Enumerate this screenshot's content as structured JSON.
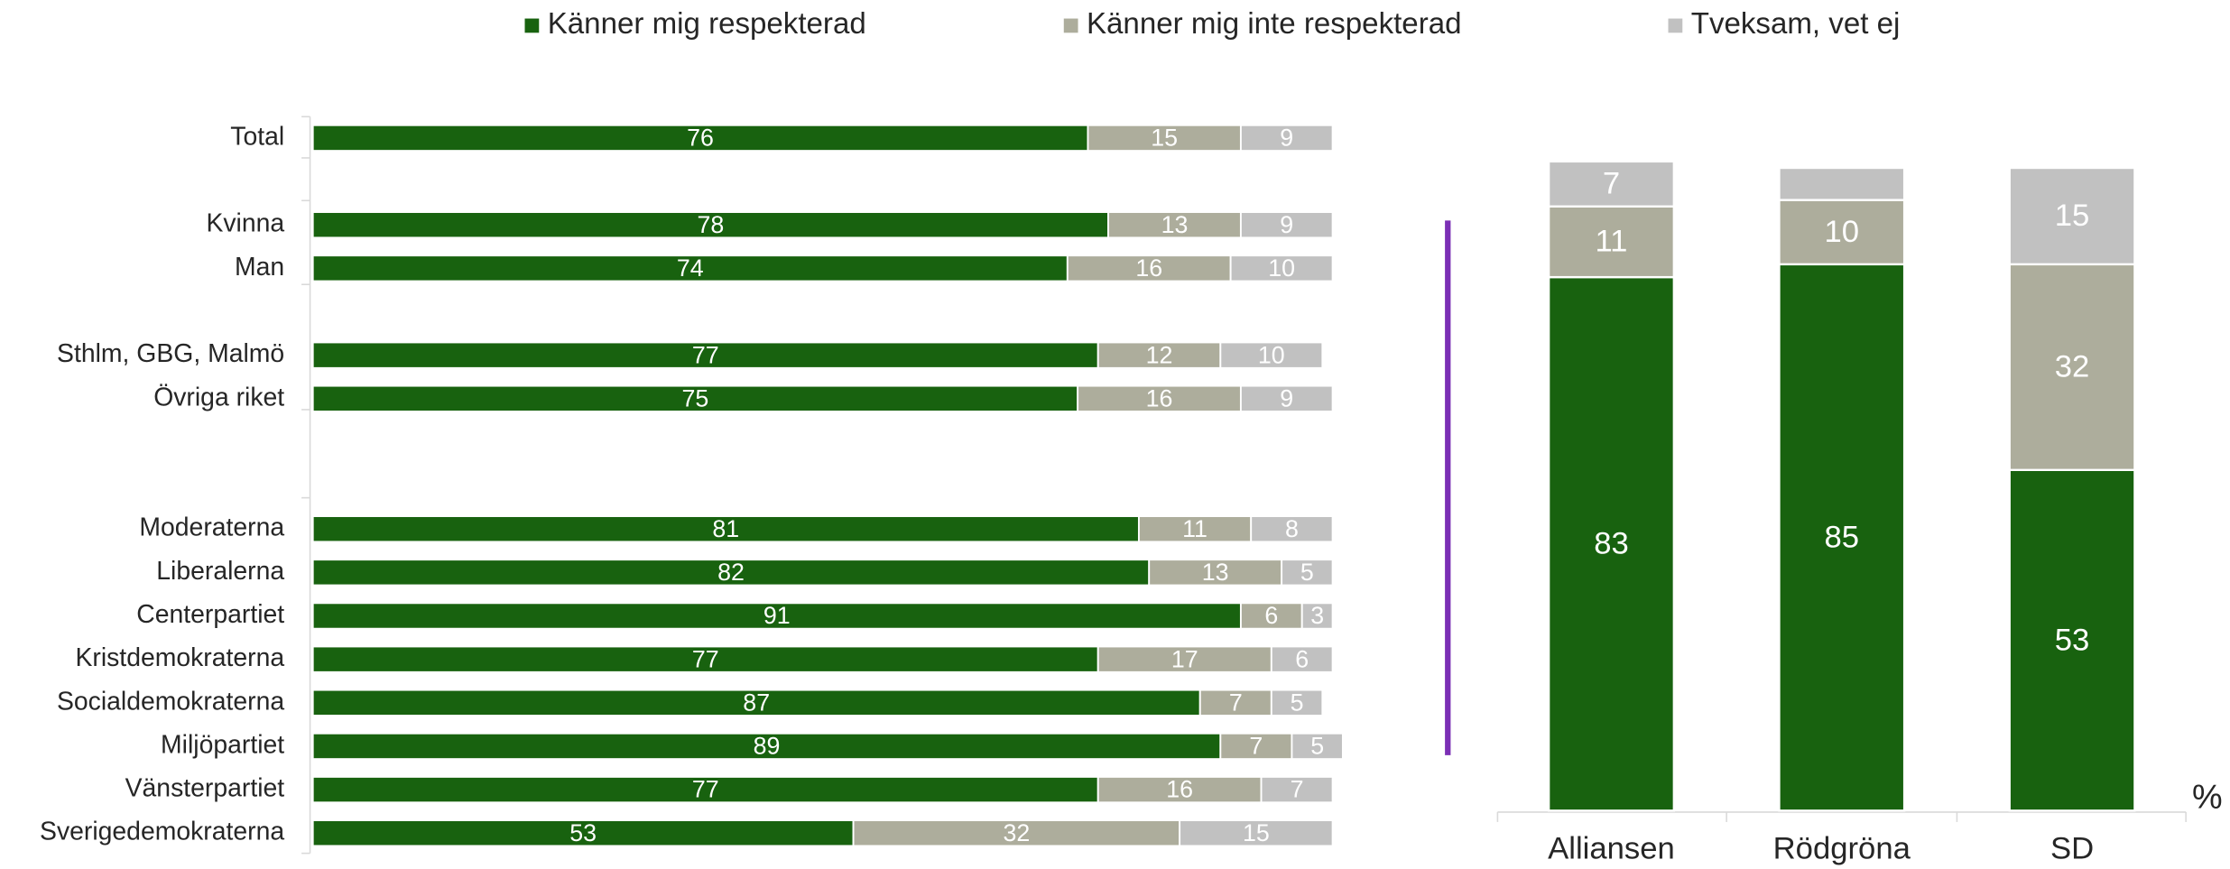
{
  "chart_data": [
    {
      "type": "hbar_stacked",
      "categories": [
        "Total",
        null,
        "Kvinna",
        "Man",
        null,
        "Sthlm, GBG, Malmö",
        "Övriga riket",
        null,
        null,
        "Moderaterna",
        "Liberalerna",
        "Centerpartiet",
        "Kristdemokraterna",
        "Socialdemokraterna",
        "Miljöpartiet",
        "Vänsterpartiet",
        "Sverigedemokraterna"
      ],
      "xlim": [
        0,
        100
      ],
      "series": [
        {
          "name": "Känner mig respekterad",
          "color": "#18620f",
          "values": [
            76,
            null,
            78,
            74,
            null,
            77,
            75,
            null,
            null,
            81,
            82,
            91,
            77,
            87,
            89,
            77,
            53
          ]
        },
        {
          "name": "Känner mig inte respekterad",
          "color": "#adad9c",
          "values": [
            15,
            null,
            13,
            16,
            null,
            12,
            16,
            null,
            null,
            11,
            13,
            6,
            17,
            7,
            7,
            16,
            32
          ]
        },
        {
          "name": "Tveksam, vet ej",
          "color": "#c1c1c1",
          "values": [
            9,
            null,
            9,
            10,
            null,
            10,
            9,
            null,
            null,
            8,
            5,
            3,
            6,
            5,
            5,
            7,
            15
          ]
        }
      ]
    },
    {
      "type": "vbar_stacked",
      "categories": [
        "Alliansen",
        "Rödgröna",
        "SD"
      ],
      "ylim": [
        0,
        100
      ],
      "ylabel": "%",
      "series": [
        {
          "color": "#18620f",
          "values": [
            83,
            85,
            53
          ]
        },
        {
          "color": "#adad9c",
          "values": [
            11,
            10,
            32
          ]
        },
        {
          "color": "#c1c1c1",
          "values": [
            7,
            5,
            15
          ],
          "value_labels": [
            "7",
            null,
            "15"
          ]
        }
      ]
    }
  ]
}
